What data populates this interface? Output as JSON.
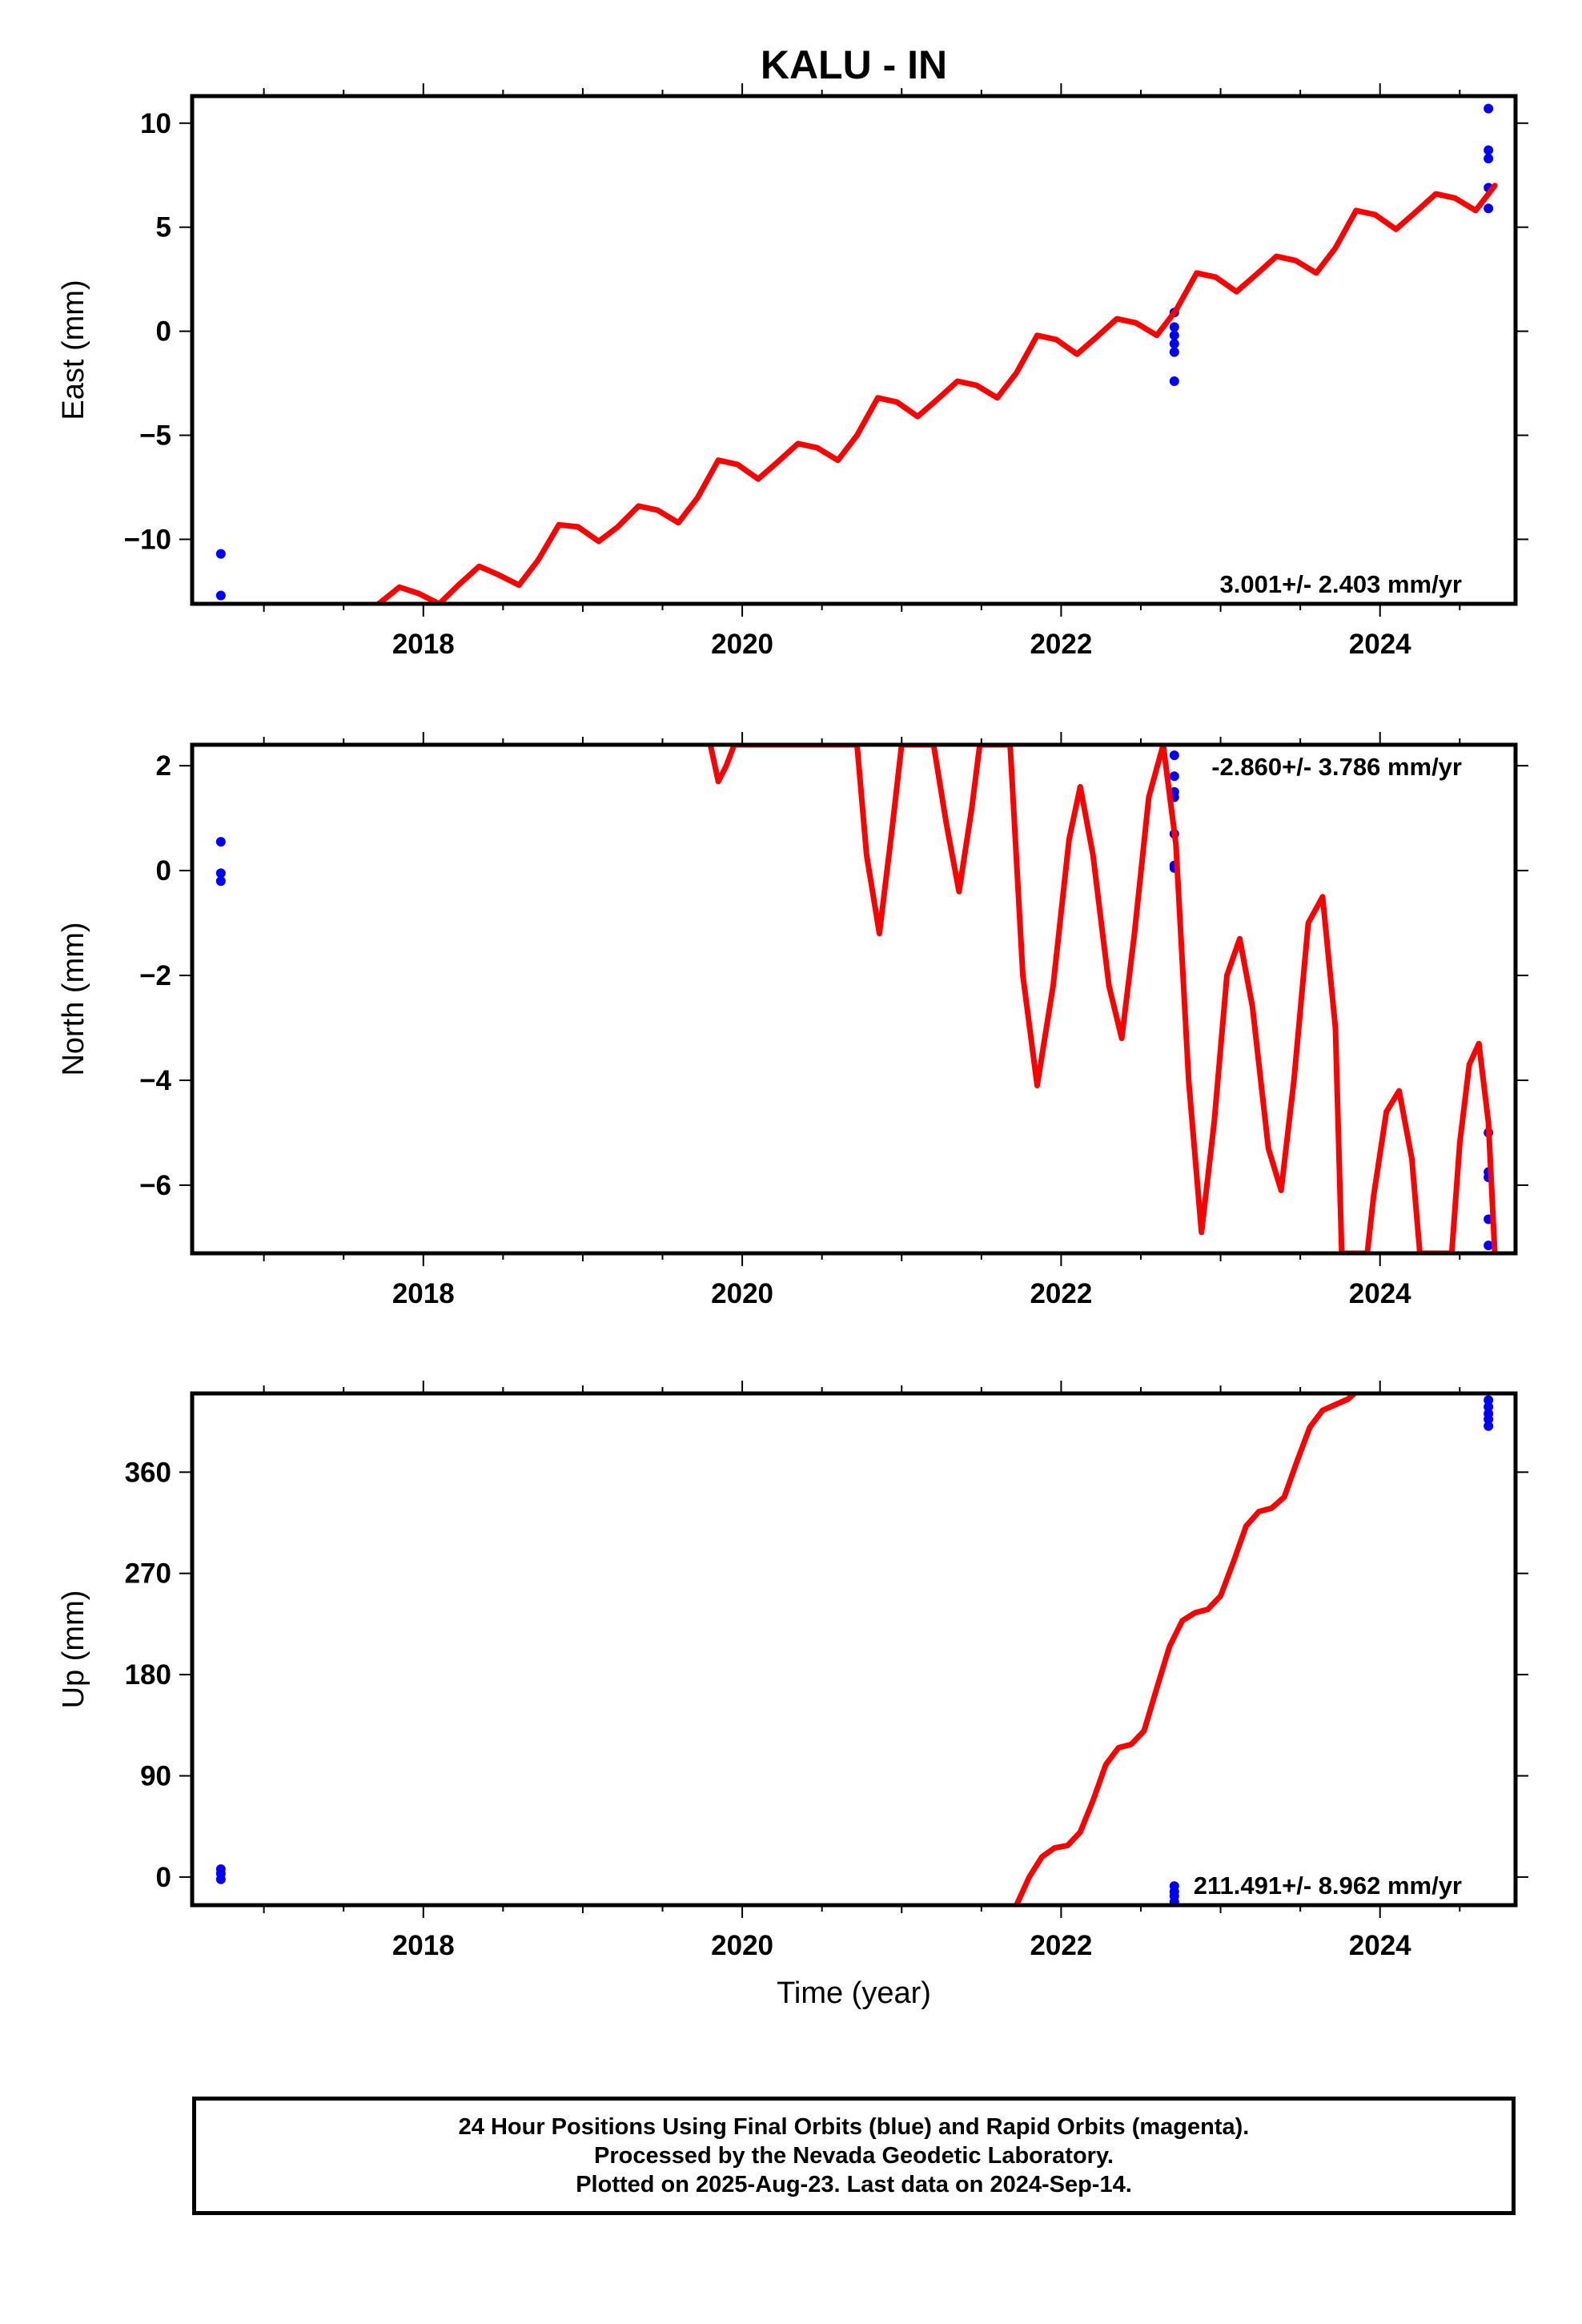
{
  "footer": {
    "line1": "24 Hour Positions Using Final Orbits (blue) and Rapid Orbits (magenta).",
    "line2": "Processed by the Nevada Geodetic Laboratory.",
    "line3": "Plotted on 2025-Aug-23. Last data on 2024-Sep-14."
  },
  "colors": {
    "data_points": "#0000ff",
    "model_line": "#ff0000",
    "frame": "#000000"
  },
  "chart_data": [
    {
      "type": "scatter",
      "title": "KALU - IN",
      "xlabel": "",
      "ylabel": "East (mm)",
      "xlim": [
        2016.55,
        2024.85
      ],
      "ylim": [
        -13.1,
        11.3
      ],
      "xticks": [
        2018,
        2020,
        2022,
        2024
      ],
      "yticks": [
        -10,
        -5,
        0,
        5,
        10
      ],
      "annotation": "3.001+/- 2.403 mm/yr",
      "series": [
        {
          "kind": "points",
          "x": [
            2016.73,
            2016.73,
            2022.71,
            2022.71,
            2022.71,
            2022.71,
            2022.71,
            2022.71,
            2024.68,
            2024.68,
            2024.68,
            2024.68,
            2024.68
          ],
          "y": [
            -10.7,
            -12.7,
            0.2,
            -0.2,
            -0.6,
            -1.0,
            -2.4,
            0.9,
            10.7,
            8.7,
            8.3,
            6.9,
            5.9
          ]
        },
        {
          "kind": "line",
          "x": [
            2017.72,
            2017.85,
            2017.97,
            2018.1,
            2018.22,
            2018.35,
            2018.47,
            2018.6,
            2018.72,
            2018.85,
            2018.97,
            2019.1,
            2019.22,
            2019.35,
            2019.47,
            2019.6,
            2019.72,
            2019.85,
            2019.97,
            2020.1,
            2020.22,
            2020.35,
            2020.47,
            2020.6,
            2020.72,
            2020.85,
            2020.97,
            2021.1,
            2021.22,
            2021.35,
            2021.47,
            2021.6,
            2021.72,
            2021.85,
            2021.97,
            2022.1,
            2022.22,
            2022.35,
            2022.47,
            2022.6,
            2022.72,
            2022.85,
            2022.97,
            2023.1,
            2023.22,
            2023.35,
            2023.47,
            2023.6,
            2023.72,
            2023.85,
            2023.97,
            2024.1,
            2024.22,
            2024.35,
            2024.47,
            2024.6,
            2024.72
          ],
          "y": [
            -13.1,
            -12.3,
            -12.6,
            -13.1,
            -12.2,
            -11.3,
            -11.7,
            -12.2,
            -11.0,
            -9.3,
            -9.4,
            -10.1,
            -9.4,
            -8.4,
            -8.6,
            -9.2,
            -8.0,
            -6.2,
            -6.4,
            -7.1,
            -6.3,
            -5.4,
            -5.6,
            -6.2,
            -5.0,
            -3.2,
            -3.4,
            -4.1,
            -3.3,
            -2.4,
            -2.6,
            -3.2,
            -2.0,
            -0.2,
            -0.4,
            -1.1,
            -0.3,
            0.6,
            0.4,
            -0.2,
            1.0,
            2.8,
            2.6,
            1.9,
            2.7,
            3.6,
            3.4,
            2.8,
            4.0,
            5.8,
            5.6,
            4.9,
            5.7,
            6.6,
            6.4,
            5.8,
            7.0
          ]
        }
      ]
    },
    {
      "type": "scatter",
      "xlabel": "",
      "ylabel": "North (mm)",
      "xlim": [
        2016.55,
        2024.85
      ],
      "ylim": [
        -7.3,
        2.4
      ],
      "xticks": [
        2018,
        2020,
        2022,
        2024
      ],
      "yticks": [
        -6,
        -4,
        -2,
        0,
        2
      ],
      "annotation": "-2.860+/- 3.786 mm/yr",
      "series": [
        {
          "kind": "points",
          "x": [
            2016.73,
            2016.73,
            2016.73,
            2022.71,
            2022.71,
            2022.71,
            2022.71,
            2022.71,
            2022.71,
            2022.71,
            2024.68,
            2024.68,
            2024.68,
            2024.68,
            2024.68
          ],
          "y": [
            0.55,
            -0.05,
            -0.2,
            2.2,
            1.8,
            1.5,
            1.4,
            0.7,
            0.1,
            0.05,
            -5.0,
            -5.75,
            -5.85,
            -6.65,
            -7.15
          ]
        },
        {
          "kind": "line",
          "x": [
            2019.8,
            2019.85,
            2019.9,
            2019.95,
            2020.72,
            2020.78,
            2020.86,
            2020.94,
            2021.0,
            2021.2,
            2021.28,
            2021.36,
            2021.44,
            2021.49,
            2021.68,
            2021.76,
            2021.85,
            2021.95,
            2022.05,
            2022.12,
            2022.2,
            2022.3,
            2022.38,
            2022.46,
            2022.55,
            2022.64,
            2022.72,
            2022.8,
            2022.88,
            2022.96,
            2023.04,
            2023.12,
            2023.2,
            2023.3,
            2023.38,
            2023.46,
            2023.55,
            2023.64,
            2023.72,
            2023.76,
            2023.92,
            2023.96,
            2024.04,
            2024.12,
            2024.2,
            2024.25,
            2024.45,
            2024.5,
            2024.56,
            2024.62,
            2024.68,
            2024.72
          ],
          "y": [
            2.4,
            1.7,
            2.0,
            2.4,
            2.4,
            0.3,
            -1.2,
            0.8,
            2.4,
            2.4,
            0.9,
            -0.4,
            1.2,
            2.4,
            2.4,
            -2.0,
            -4.1,
            -2.2,
            0.6,
            1.6,
            0.3,
            -2.2,
            -3.2,
            -1.2,
            1.4,
            2.4,
            0.5,
            -4.0,
            -6.9,
            -4.8,
            -2.0,
            -1.3,
            -2.6,
            -5.3,
            -6.1,
            -4.0,
            -1.0,
            -0.5,
            -3.0,
            -7.3,
            -7.3,
            -6.2,
            -4.6,
            -4.2,
            -5.5,
            -7.3,
            -7.3,
            -5.2,
            -3.7,
            -3.3,
            -4.8,
            -7.3
          ]
        }
      ]
    },
    {
      "type": "scatter",
      "xlabel": "Time (year)",
      "ylabel": "Up (mm)",
      "xlim": [
        2016.55,
        2024.85
      ],
      "ylim": [
        -25,
        430
      ],
      "xticks": [
        2018,
        2020,
        2022,
        2024
      ],
      "yticks": [
        0,
        90,
        180,
        270,
        360
      ],
      "annotation": "211.491+/- 8.962 mm/yr",
      "series": [
        {
          "kind": "points",
          "x": [
            2016.73,
            2016.73,
            2016.73,
            2022.71,
            2022.71,
            2022.71,
            2022.71,
            2024.68,
            2024.68,
            2024.68,
            2024.68,
            2024.68
          ],
          "y": [
            7,
            3,
            -2,
            -8,
            -13,
            -17,
            -22,
            424,
            418,
            412,
            407,
            401
          ]
        },
        {
          "kind": "line",
          "x": [
            2021.72,
            2021.8,
            2021.88,
            2021.96,
            2022.04,
            2022.12,
            2022.2,
            2022.28,
            2022.36,
            2022.44,
            2022.52,
            2022.6,
            2022.68,
            2022.76,
            2022.84,
            2022.92,
            2023.0,
            2023.08,
            2023.16,
            2023.24,
            2023.32,
            2023.4,
            2023.48,
            2023.56,
            2023.64,
            2023.72,
            2023.8,
            2023.84
          ],
          "y": [
            -25,
            0,
            18,
            26,
            28,
            40,
            68,
            100,
            115,
            118,
            130,
            168,
            205,
            228,
            235,
            238,
            250,
            280,
            312,
            325,
            328,
            338,
            370,
            400,
            415,
            420,
            425,
            430
          ]
        }
      ]
    }
  ]
}
